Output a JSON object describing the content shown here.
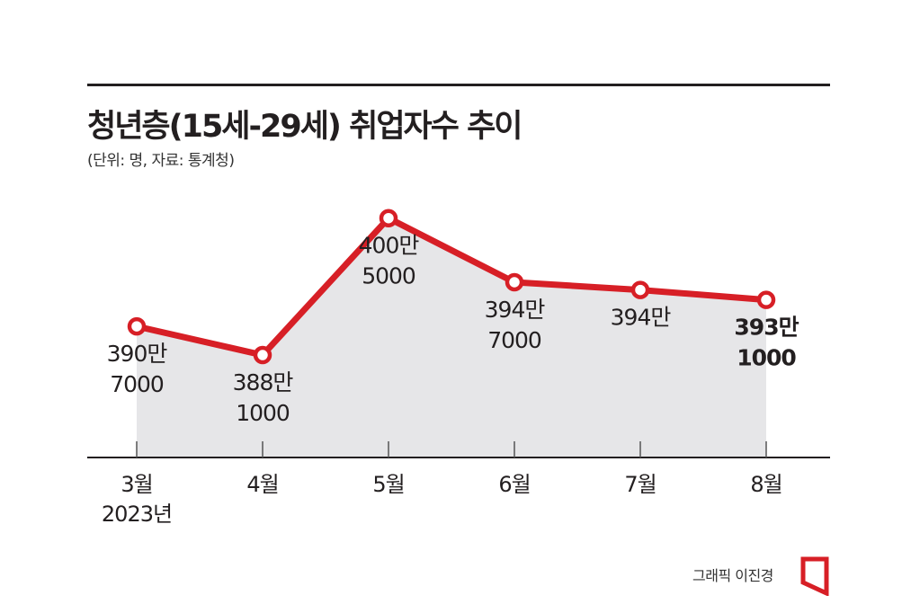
{
  "header": {
    "title": "청년층(15세-29세) 취업자수 추이",
    "subtitle": "(단위: 명, 자료: 통계청)"
  },
  "footer": {
    "credit": "그래픽 이진경"
  },
  "colors": {
    "line": "#d71f26",
    "area": "#e6e6e8",
    "axis": "#231f20",
    "text": "#231f20"
  },
  "chart_data": {
    "type": "line",
    "categories": [
      "3월",
      "4월",
      "5월",
      "6월",
      "7월",
      "8월"
    ],
    "year_label": "2023년",
    "values": [
      3907000,
      3881000,
      4005000,
      3947000,
      3940000,
      3931000
    ],
    "data_labels": [
      [
        "390만",
        "7000"
      ],
      [
        "388만",
        "1000"
      ],
      [
        "400만",
        "5000"
      ],
      [
        "394만",
        "7000"
      ],
      [
        "394만"
      ],
      [
        "393만",
        "1000"
      ]
    ],
    "highlight_index": 5,
    "ylim": [
      3820000,
      4030000
    ],
    "grid": false,
    "area_fill": true
  }
}
